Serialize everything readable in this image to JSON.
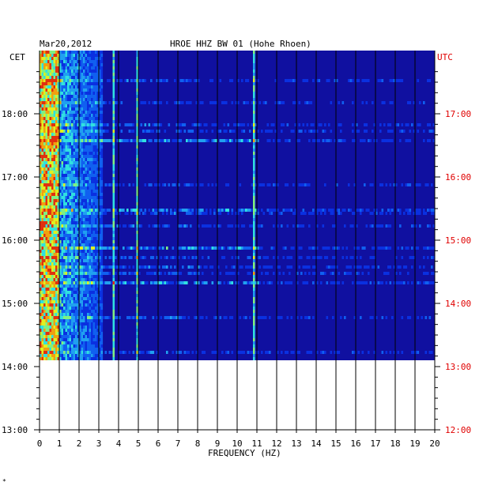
{
  "chart_data": {
    "type": "heatmap",
    "title": "HROE HHZ BW 01 (Hohe Rhoen)",
    "date": "Mar20,2012",
    "xlabel": "FREQUENCY (HZ)",
    "left_axis_label": "CET",
    "right_axis_label": "UTC",
    "xlim": [
      0,
      20
    ],
    "x_ticks": [
      "0",
      "1",
      "2",
      "3",
      "4",
      "5",
      "6",
      "7",
      "8",
      "9",
      "10",
      "11",
      "12",
      "13",
      "14",
      "15",
      "16",
      "17",
      "18",
      "19",
      "20"
    ],
    "cet_ticks": [
      "18:00",
      "17:00",
      "16:00",
      "15:00",
      "14:00",
      "13:00"
    ],
    "utc_ticks": [
      "17:00",
      "16:00",
      "15:00",
      "14:00",
      "13:00",
      "12:00"
    ],
    "time_range_cet": [
      "13:00",
      "18:40"
    ],
    "data_end_cet": "14:09",
    "persistent_lines_hz": [
      3.7,
      4.9,
      10.8
    ],
    "bright_events_cet": [
      "15:53",
      "15:22",
      "16:30",
      "17:37"
    ],
    "colors": {
      "background": "#1010a0",
      "low": "#0a10b0",
      "mid": "#20c0e0",
      "high": "#f0f000",
      "peak": "#e02010",
      "utc_text": "#e00000",
      "grid": "#000000"
    }
  },
  "footer_mark": "*"
}
